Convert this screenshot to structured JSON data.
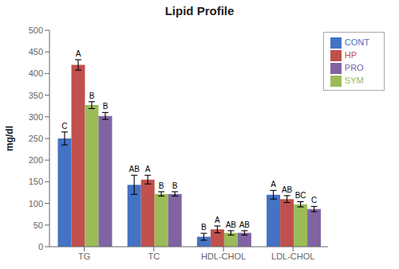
{
  "chart_data": {
    "type": "bar",
    "title": "Lipid Profile",
    "ylabel": "mg/dl",
    "categories": [
      "TG",
      "TC",
      "HDL-CHOL",
      "LDL-CHOL"
    ],
    "series": [
      {
        "name": "CONT",
        "color": "#4472C4",
        "values": [
          250,
          143,
          23,
          120
        ],
        "errors": [
          15,
          22,
          8,
          10
        ],
        "annotations": [
          "C",
          "AB",
          "B",
          "A"
        ]
      },
      {
        "name": "HP",
        "color": "#C0504D",
        "values": [
          420,
          155,
          40,
          110
        ],
        "errors": [
          12,
          10,
          8,
          8
        ],
        "annotations": [
          "A",
          "A",
          "A",
          "AB"
        ]
      },
      {
        "name": "SYM",
        "color": "#9BBB59",
        "values": [
          327,
          122,
          32,
          98
        ],
        "errors": [
          8,
          5,
          5,
          6
        ],
        "annotations": [
          "B",
          "B",
          "AB",
          "BC"
        ]
      },
      {
        "name": "PRO",
        "color": "#8064A2",
        "values": [
          302,
          122,
          32,
          87
        ],
        "errors": [
          8,
          5,
          5,
          6
        ],
        "annotations": [
          "B",
          "B",
          "AB",
          "C"
        ]
      }
    ],
    "ylim": [
      0,
      500
    ],
    "yticks": [
      0,
      50,
      100,
      150,
      200,
      250,
      300,
      350,
      400,
      450,
      500
    ],
    "legend": "upper right",
    "grid": false
  }
}
